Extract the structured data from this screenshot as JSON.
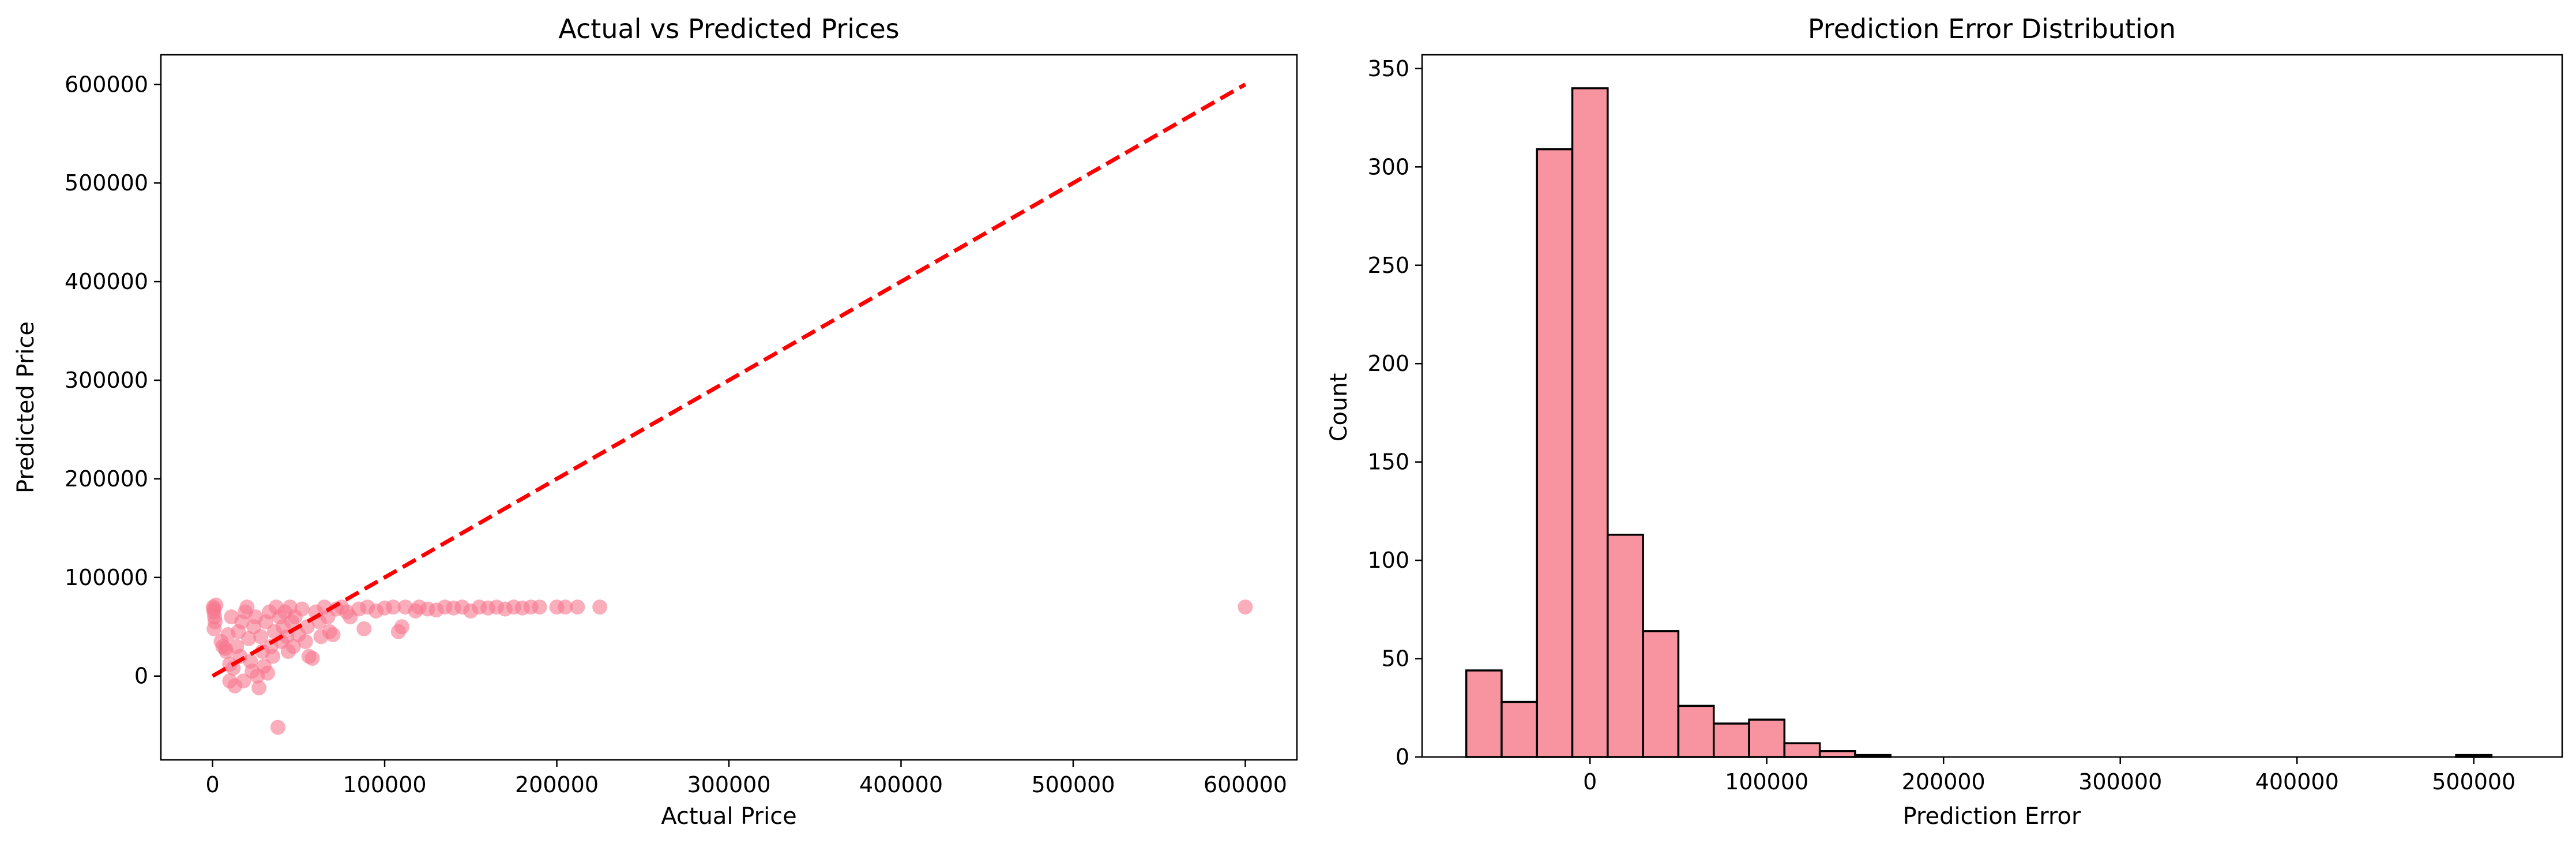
{
  "chart_data": [
    {
      "type": "scatter",
      "title": "Actual vs Predicted Prices",
      "xlabel": "Actual Price",
      "ylabel": "Predicted Price",
      "xlim": [
        -30000,
        630000
      ],
      "ylim": [
        -85000,
        630000
      ],
      "xticks": [
        0,
        100000,
        200000,
        300000,
        400000,
        500000,
        600000
      ],
      "yticks": [
        0,
        100000,
        200000,
        300000,
        400000,
        500000,
        600000
      ],
      "grid": false,
      "colors": {
        "points": "#f7768e",
        "reference_line": "#ff0000"
      },
      "reference_line": {
        "style": "dashed",
        "from": [
          0,
          0
        ],
        "to": [
          600000,
          600000
        ]
      },
      "series": [
        {
          "points": [
            [
              500,
              70000
            ],
            [
              800,
              65000
            ],
            [
              1200,
              60000
            ],
            [
              1500,
              55000
            ],
            [
              900,
              48000
            ],
            [
              2000,
              72000
            ],
            [
              700,
              68000
            ],
            [
              5000,
              35000
            ],
            [
              6000,
              30000
            ],
            [
              7500,
              28000
            ],
            [
              8000,
              25000
            ],
            [
              9000,
              42000
            ],
            [
              10000,
              12000
            ],
            [
              10000,
              -5000
            ],
            [
              11000,
              60000
            ],
            [
              12000,
              8000
            ],
            [
              13000,
              -10000
            ],
            [
              14000,
              30000
            ],
            [
              15000,
              45000
            ],
            [
              16000,
              20000
            ],
            [
              17000,
              55000
            ],
            [
              18000,
              -5000
            ],
            [
              19000,
              65000
            ],
            [
              20000,
              70000
            ],
            [
              21000,
              38000
            ],
            [
              22000,
              15000
            ],
            [
              23000,
              5000
            ],
            [
              24000,
              50000
            ],
            [
              25000,
              60000
            ],
            [
              26000,
              0
            ],
            [
              27000,
              -12000
            ],
            [
              28000,
              40000
            ],
            [
              29000,
              25000
            ],
            [
              30000,
              10000
            ],
            [
              31000,
              55000
            ],
            [
              32000,
              3000
            ],
            [
              33000,
              65000
            ],
            [
              34000,
              30000
            ],
            [
              35000,
              20000
            ],
            [
              36000,
              45000
            ],
            [
              37000,
              70000
            ],
            [
              38000,
              -52000
            ],
            [
              39000,
              60000
            ],
            [
              40000,
              35000
            ],
            [
              41000,
              50000
            ],
            [
              42000,
              65000
            ],
            [
              43000,
              40000
            ],
            [
              44000,
              25000
            ],
            [
              45000,
              70000
            ],
            [
              46000,
              55000
            ],
            [
              47000,
              30000
            ],
            [
              48000,
              60000
            ],
            [
              50000,
              42000
            ],
            [
              52000,
              68000
            ],
            [
              54000,
              35000
            ],
            [
              55000,
              50000
            ],
            [
              56000,
              20000
            ],
            [
              58000,
              18000
            ],
            [
              60000,
              65000
            ],
            [
              62000,
              55000
            ],
            [
              63000,
              40000
            ],
            [
              65000,
              70000
            ],
            [
              67000,
              60000
            ],
            [
              68000,
              45000
            ],
            [
              70000,
              42000
            ],
            [
              72000,
              68000
            ],
            [
              75000,
              70000
            ],
            [
              78000,
              65000
            ],
            [
              80000,
              60000
            ],
            [
              85000,
              68000
            ],
            [
              88000,
              48000
            ],
            [
              90000,
              70000
            ],
            [
              95000,
              66000
            ],
            [
              100000,
              69000
            ],
            [
              105000,
              70000
            ],
            [
              108000,
              45000
            ],
            [
              110000,
              50000
            ],
            [
              112000,
              70000
            ],
            [
              118000,
              66000
            ],
            [
              120000,
              70000
            ],
            [
              125000,
              68000
            ],
            [
              130000,
              67000
            ],
            [
              135000,
              70000
            ],
            [
              140000,
              69000
            ],
            [
              145000,
              70000
            ],
            [
              150000,
              66000
            ],
            [
              155000,
              70000
            ],
            [
              160000,
              69000
            ],
            [
              165000,
              70000
            ],
            [
              170000,
              68000
            ],
            [
              175000,
              70000
            ],
            [
              180000,
              69000
            ],
            [
              185000,
              70000
            ],
            [
              190000,
              70000
            ],
            [
              200000,
              70000
            ],
            [
              205000,
              70000
            ],
            [
              212000,
              70000
            ],
            [
              225000,
              70000
            ],
            [
              600000,
              70000
            ]
          ]
        }
      ]
    },
    {
      "type": "bar",
      "subtype": "histogram",
      "title": "Prediction Error Distribution",
      "xlabel": "Prediction Error",
      "ylabel": "Count",
      "xlim": [
        -95000,
        550000
      ],
      "ylim": [
        0,
        357
      ],
      "xticks": [
        0,
        100000,
        200000,
        300000,
        400000,
        500000
      ],
      "yticks": [
        0,
        50,
        100,
        150,
        200,
        250,
        300,
        350
      ],
      "grid": false,
      "colors": {
        "bars": "#f7949f",
        "edge": "#000000"
      },
      "bin_start": -70000,
      "bin_width": 20000,
      "counts": [
        44,
        28,
        309,
        340,
        113,
        64,
        26,
        17,
        19,
        7,
        3,
        1,
        0,
        0,
        0,
        0,
        0,
        0,
        0,
        0,
        0,
        0,
        0,
        0,
        0,
        0,
        0,
        0,
        1
      ]
    }
  ]
}
